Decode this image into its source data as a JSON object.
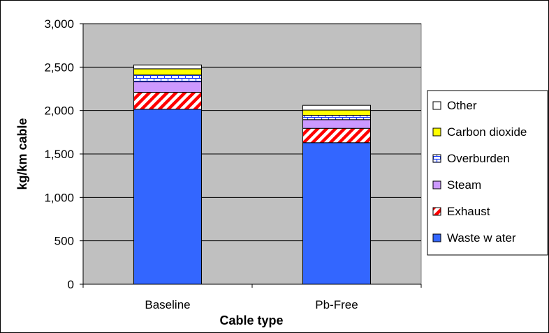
{
  "chart_data": {
    "type": "bar",
    "stacked": true,
    "title": "",
    "xlabel": "Cable type",
    "ylabel": "kg/km cable",
    "ylim": [
      0,
      3000
    ],
    "ytick_step": 500,
    "ytick_labels": [
      "0",
      "500",
      "1,000",
      "1,500",
      "2,000",
      "2,500",
      "3,000"
    ],
    "grid": true,
    "legend_position": "right",
    "categories": [
      "Baseline",
      "Pb-Free"
    ],
    "series": [
      {
        "name": "Waste w ater",
        "values": [
          2015,
          1630
        ],
        "color": "#3366ff",
        "pattern": "solid"
      },
      {
        "name": "Exhaust",
        "values": [
          195,
          165
        ],
        "color": "#ff0000",
        "pattern": "diagonal-stripes"
      },
      {
        "name": "Steam",
        "values": [
          120,
          100
        ],
        "color": "#cc99ff",
        "pattern": "solid"
      },
      {
        "name": "Overburden",
        "values": [
          80,
          50
        ],
        "color": "#ffffff",
        "pattern": "blue-brick"
      },
      {
        "name": "Carbon dioxide",
        "values": [
          70,
          60
        ],
        "color": "#ffff00",
        "pattern": "solid"
      },
      {
        "name": "Other",
        "values": [
          45,
          55
        ],
        "color": "#ffffff",
        "pattern": "solid"
      }
    ],
    "plot_background": "#c0c0c0"
  }
}
